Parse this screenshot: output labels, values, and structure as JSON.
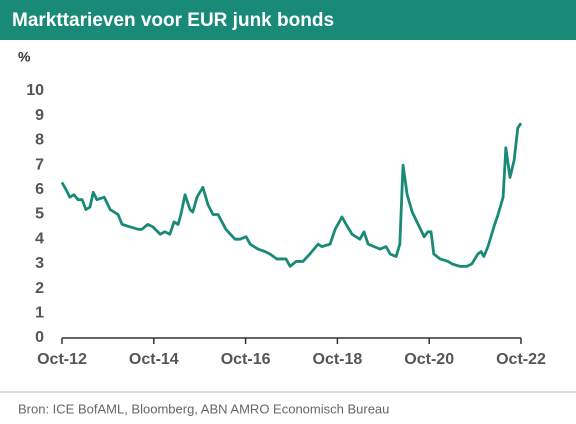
{
  "chart_data": {
    "type": "line",
    "title": "Markttarieven voor EUR junk bonds",
    "y_label": "%",
    "source": "Bron: ICE BofAML, Bloomberg, ABN AMRO Economisch Bureau",
    "x": [
      2012.75,
      2012.84,
      2012.92,
      2013.01,
      2013.1,
      2013.19,
      2013.27,
      2013.36,
      2013.43,
      2013.51,
      2013.67,
      2013.8,
      2013.97,
      2014.06,
      2014.23,
      2014.41,
      2014.49,
      2014.62,
      2014.73,
      2014.89,
      2014.99,
      2015.1,
      2015.19,
      2015.28,
      2015.34,
      2015.43,
      2015.54,
      2015.6,
      2015.69,
      2015.82,
      2015.93,
      2016.04,
      2016.15,
      2016.32,
      2016.52,
      2016.63,
      2016.76,
      2016.85,
      2017.02,
      2017.17,
      2017.28,
      2017.43,
      2017.63,
      2017.72,
      2017.85,
      2018.0,
      2018.15,
      2018.33,
      2018.41,
      2018.59,
      2018.7,
      2018.85,
      2018.94,
      2019.07,
      2019.24,
      2019.33,
      2019.42,
      2019.55,
      2019.68,
      2019.81,
      2019.9,
      2020.03,
      2020.11,
      2020.18,
      2020.27,
      2020.38,
      2020.51,
      2020.64,
      2020.72,
      2020.79,
      2020.85,
      2020.99,
      2021.16,
      2021.25,
      2021.42,
      2021.57,
      2021.68,
      2021.81,
      2021.88,
      2021.94,
      2022.03,
      2022.16,
      2022.25,
      2022.36,
      2022.42,
      2022.51,
      2022.6,
      2022.68,
      2022.75
    ],
    "series": [
      {
        "name": "EUR junk bonds",
        "color": "#1a8a78",
        "values": [
          6.3,
          6.0,
          5.7,
          5.8,
          5.6,
          5.6,
          5.2,
          5.3,
          5.9,
          5.6,
          5.7,
          5.2,
          5.0,
          4.6,
          4.5,
          4.4,
          4.4,
          4.6,
          4.5,
          4.2,
          4.3,
          4.2,
          4.7,
          4.6,
          5.0,
          5.8,
          5.2,
          5.1,
          5.7,
          6.1,
          5.4,
          5.0,
          5.0,
          4.4,
          4.0,
          4.0,
          4.1,
          3.8,
          3.6,
          3.5,
          3.4,
          3.2,
          3.2,
          2.9,
          3.1,
          3.1,
          3.4,
          3.8,
          3.7,
          3.8,
          4.4,
          4.9,
          4.6,
          4.2,
          4.0,
          4.3,
          3.8,
          3.7,
          3.6,
          3.7,
          3.4,
          3.3,
          3.8,
          7.0,
          5.8,
          5.1,
          4.6,
          4.1,
          4.3,
          4.3,
          3.4,
          3.2,
          3.1,
          3.0,
          2.9,
          2.9,
          3.0,
          3.4,
          3.5,
          3.3,
          3.7,
          4.5,
          5.0,
          5.7,
          7.7,
          6.5,
          7.2,
          8.5,
          8.7
        ]
      }
    ],
    "xlim": [
      2012.75,
      2022.75
    ],
    "xticks": [
      {
        "value": 2012.75,
        "label": "Oct-12"
      },
      {
        "value": 2014.75,
        "label": "Oct-14"
      },
      {
        "value": 2016.75,
        "label": "Oct-16"
      },
      {
        "value": 2018.75,
        "label": "Oct-18"
      },
      {
        "value": 2020.75,
        "label": "Oct-20"
      },
      {
        "value": 2022.75,
        "label": "Oct-22"
      }
    ],
    "ylim": [
      0,
      10
    ],
    "yticks": [
      0,
      1,
      2,
      3,
      4,
      5,
      6,
      7,
      8,
      9,
      10
    ],
    "grid": false
  }
}
